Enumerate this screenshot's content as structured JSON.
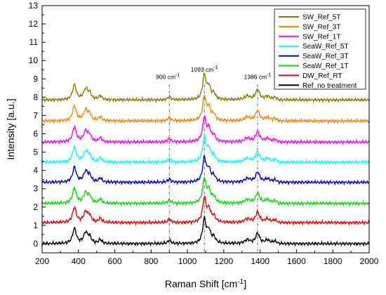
{
  "chart_data": {
    "type": "line",
    "title": "",
    "xlabel": "Raman Shift [cm",
    "xlabel_sup": "-1",
    "xlabel_end": "]",
    "ylabel": "Intensity [a.u.]",
    "xlim": [
      200,
      2000
    ],
    "ylim": [
      -0.5,
      13
    ],
    "xticks": [
      200,
      400,
      600,
      800,
      1000,
      1200,
      1400,
      1600,
      1800,
      2000
    ],
    "yticks": [
      0,
      1,
      2,
      3,
      4,
      5,
      6,
      7,
      8,
      9,
      10,
      11,
      12,
      13
    ],
    "grid": false,
    "legend_position": "top-right",
    "reference_lines": [
      {
        "x": 900,
        "label": "900 cm",
        "sup": "-1"
      },
      {
        "x": 1093,
        "label": "1093 cm",
        "sup": "-1"
      },
      {
        "x": 1386,
        "label": "1386 cm",
        "sup": "-1"
      }
    ],
    "peaks": [
      {
        "x": 378,
        "height": 0.82,
        "width": 12
      },
      {
        "x": 440,
        "height": 0.58,
        "width": 14
      },
      {
        "x": 462,
        "height": 0.32,
        "width": 10
      },
      {
        "x": 520,
        "height": 0.22,
        "width": 10
      },
      {
        "x": 900,
        "height": 0.18,
        "width": 10
      },
      {
        "x": 1093,
        "height": 1.3,
        "width": 11
      },
      {
        "x": 1118,
        "height": 0.65,
        "width": 12
      },
      {
        "x": 1145,
        "height": 0.3,
        "width": 12
      },
      {
        "x": 1330,
        "height": 0.2,
        "width": 18
      },
      {
        "x": 1386,
        "height": 0.55,
        "width": 13
      },
      {
        "x": 1440,
        "height": 0.18,
        "width": 15
      },
      {
        "x": 1480,
        "height": 0.12,
        "width": 12
      }
    ],
    "series": [
      {
        "name": "SW_Ref_5T",
        "color": "#808000",
        "offset": 7.85
      },
      {
        "name": "SW_Ref_3T",
        "color": "#ff8000",
        "offset": 6.7
      },
      {
        "name": "SW_Ref_1T",
        "color": "#ff00ff",
        "offset": 5.55
      },
      {
        "name": "SeaW_Ref_5T",
        "color": "#00ffff",
        "offset": 4.45
      },
      {
        "name": "SeaW_Ref_3T",
        "color": "#0000cc",
        "offset": 3.35
      },
      {
        "name": "SeaW_Ref_1T",
        "color": "#00dd00",
        "offset": 2.2
      },
      {
        "name": "DW_Ref_RT",
        "color": "#ee0000",
        "offset": 1.15
      },
      {
        "name": "Ref_no treatment",
        "color": "#000000",
        "offset": 0.0
      }
    ]
  }
}
